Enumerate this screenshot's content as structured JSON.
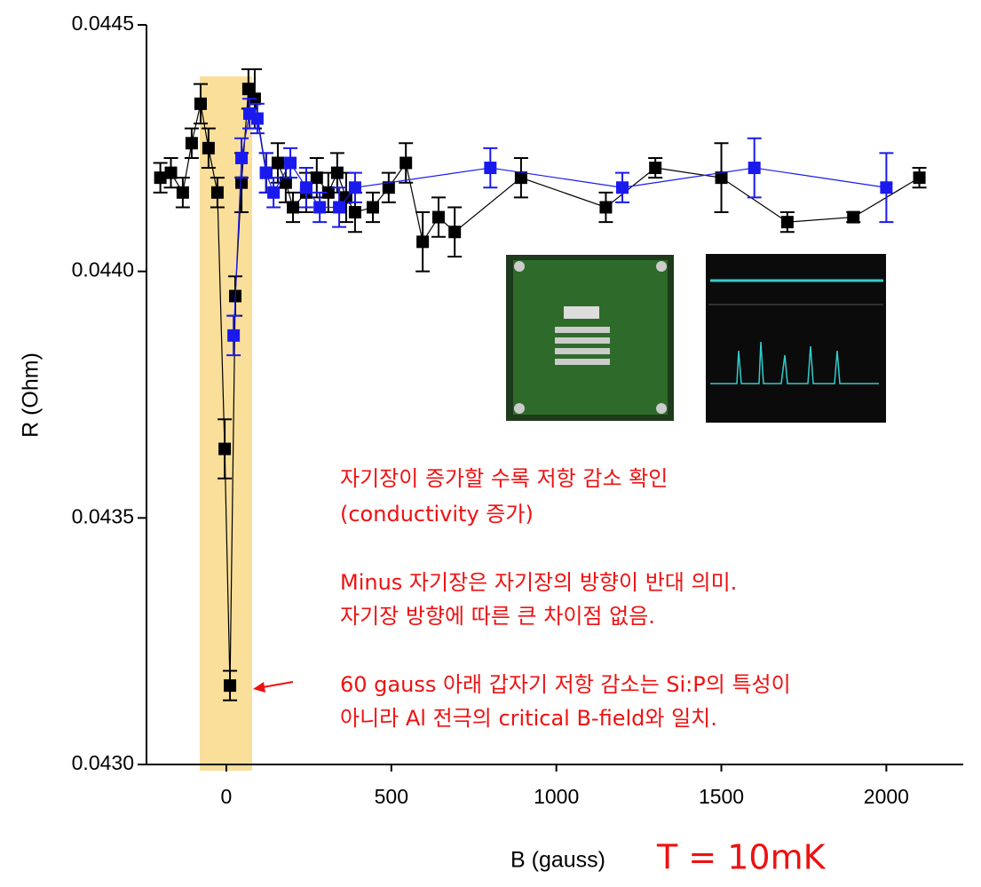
{
  "chart_data": {
    "type": "scatter",
    "x_label": "B (gauss)",
    "y_label": "R (Ohm)",
    "xlim": [
      -242,
      2233
    ],
    "ylim": [
      0.043,
      0.0445
    ],
    "xticks": [
      0,
      500,
      1000,
      1500,
      2000
    ],
    "yticks": [
      {
        "value": 0.043,
        "label": "0.0430"
      },
      0.0435,
      {
        "value": 0.044,
        "label": "0.0440"
      },
      0.0445
    ],
    "series": [
      {
        "color": "#000000",
        "x": [
          -200,
          -168,
          -132,
          -105,
          -78,
          -54,
          -27,
          -5,
          11,
          27,
          46,
          67,
          86,
          121,
          156,
          180,
          202,
          242,
          274,
          309,
          336,
          363,
          390,
          444,
          492,
          544,
          595,
          643,
          692,
          893,
          1150,
          1300,
          1500,
          1700,
          1900,
          2100
        ],
        "values": [
          0.04419,
          0.0442,
          0.04416,
          0.04426,
          0.04434,
          0.04425,
          0.04416,
          0.04364,
          0.04316,
          0.04395,
          0.04418,
          0.04437,
          0.04435,
          0.0442,
          0.04422,
          0.04418,
          0.04413,
          0.04416,
          0.04419,
          0.04416,
          0.0442,
          0.04415,
          0.04412,
          0.04413,
          0.04417,
          0.04422,
          0.04406,
          0.04411,
          0.04408,
          0.04419,
          0.04413,
          0.04421,
          0.04419,
          0.0441,
          0.04411,
          0.04419
        ],
        "errors": [
          3e-05,
          3e-05,
          3e-05,
          3e-05,
          4e-05,
          4e-05,
          3e-05,
          6e-05,
          3e-05,
          4e-05,
          6e-05,
          4e-05,
          6e-05,
          4e-05,
          4e-05,
          4e-05,
          3e-05,
          4e-05,
          4e-05,
          4e-05,
          4e-05,
          5e-05,
          4e-05,
          3e-05,
          3e-05,
          4e-05,
          6e-05,
          4e-05,
          5e-05,
          4e-05,
          3e-05,
          2e-05,
          7e-05,
          2e-05,
          1e-05,
          2e-05
        ]
      },
      {
        "color": "#1a1aee",
        "x": [
          22,
          46,
          70,
          94,
          120,
          143,
          194,
          242,
          283,
          342,
          390,
          800,
          1200,
          1600,
          2000
        ],
        "values": [
          0.04387,
          0.04423,
          0.04432,
          0.04431,
          0.0442,
          0.04416,
          0.04422,
          0.04417,
          0.04413,
          0.04413,
          0.04417,
          0.04421,
          0.04417,
          0.04421,
          0.04417
        ],
        "errors": [
          4e-05,
          4e-05,
          3e-05,
          3e-05,
          4e-05,
          3e-05,
          3e-05,
          4e-05,
          3e-05,
          4e-05,
          3e-05,
          4e-05,
          3e-05,
          6e-05,
          7e-05
        ]
      }
    ],
    "annotations": [
      "자기장이 증가할 수록 저항 감소 확인",
      "(conductivity 증가)",
      "Minus 자기장은 자기장의 방향이 반대 의미.",
      "자기장 방향에 따른 큰 차이점 없음.",
      "60 gauss 아래 갑자기 저항 감소는 Si:P의 특성이",
      "아니라 Al 전극의 critical B-field와  일치.",
      "T = 10mK"
    ]
  }
}
